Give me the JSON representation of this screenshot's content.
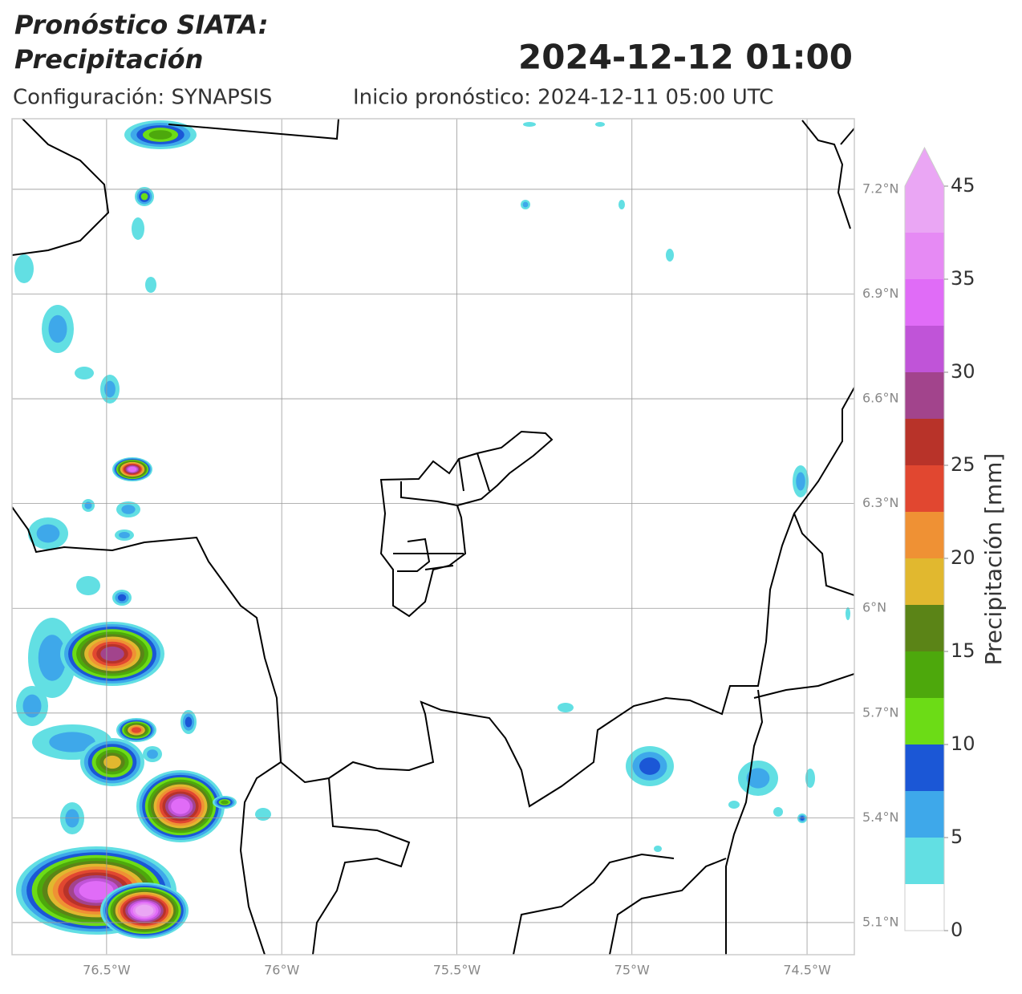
{
  "header": {
    "title_line1": "Pronóstico SIATA:",
    "title_line2": "Precipitación",
    "valid_time": "2024-12-12 01:00",
    "configuration": "Configuración: SYNAPSIS",
    "forecast_start": "Inicio pronóstico: 2024-12-11 05:00 UTC"
  },
  "map": {
    "xlim": [
      -76.77,
      -74.365
    ],
    "ylim": [
      5.008,
      7.402
    ],
    "grid": true,
    "xticks": [
      {
        "value": -76.5,
        "label": "76.5°W"
      },
      {
        "value": -76,
        "label": "76°W"
      },
      {
        "value": -75.5,
        "label": "75.5°W"
      },
      {
        "value": -75,
        "label": "75°W"
      },
      {
        "value": -74.5,
        "label": "74.5°W"
      }
    ],
    "yticks": [
      {
        "value": 7.2,
        "label": "7.2°N"
      },
      {
        "value": 6.9,
        "label": "6.9°N"
      },
      {
        "value": 6.6,
        "label": "6.6°N"
      },
      {
        "value": 6.3,
        "label": "6.3°N"
      },
      {
        "value": 6.0,
        "label": "6°N"
      },
      {
        "value": 5.7,
        "label": "5.7°N"
      },
      {
        "value": 5.4,
        "label": "5.4°N"
      },
      {
        "value": 5.1,
        "label": "5.1°N"
      }
    ]
  },
  "colorbar": {
    "label": "Precipitación [mm]",
    "levels": [
      0,
      2.5,
      5,
      7.5,
      10,
      12.5,
      15,
      17.5,
      20,
      22.5,
      25,
      27.5,
      30,
      32.5,
      35,
      40,
      45
    ],
    "colors": [
      "#ffffff",
      "#62dfe3",
      "#3ea8ea",
      "#1b57d6",
      "#6cdc16",
      "#4da80c",
      "#5b8417",
      "#e1b82f",
      "#ef9134",
      "#e14730",
      "#b83329",
      "#a2448c",
      "#c054d8",
      "#e06cf7",
      "#e68af4",
      "#eaa6f4"
    ],
    "extend_color": "#eaa6f4",
    "ticks": [
      0,
      5,
      10,
      15,
      20,
      25,
      30,
      35,
      45
    ]
  }
}
